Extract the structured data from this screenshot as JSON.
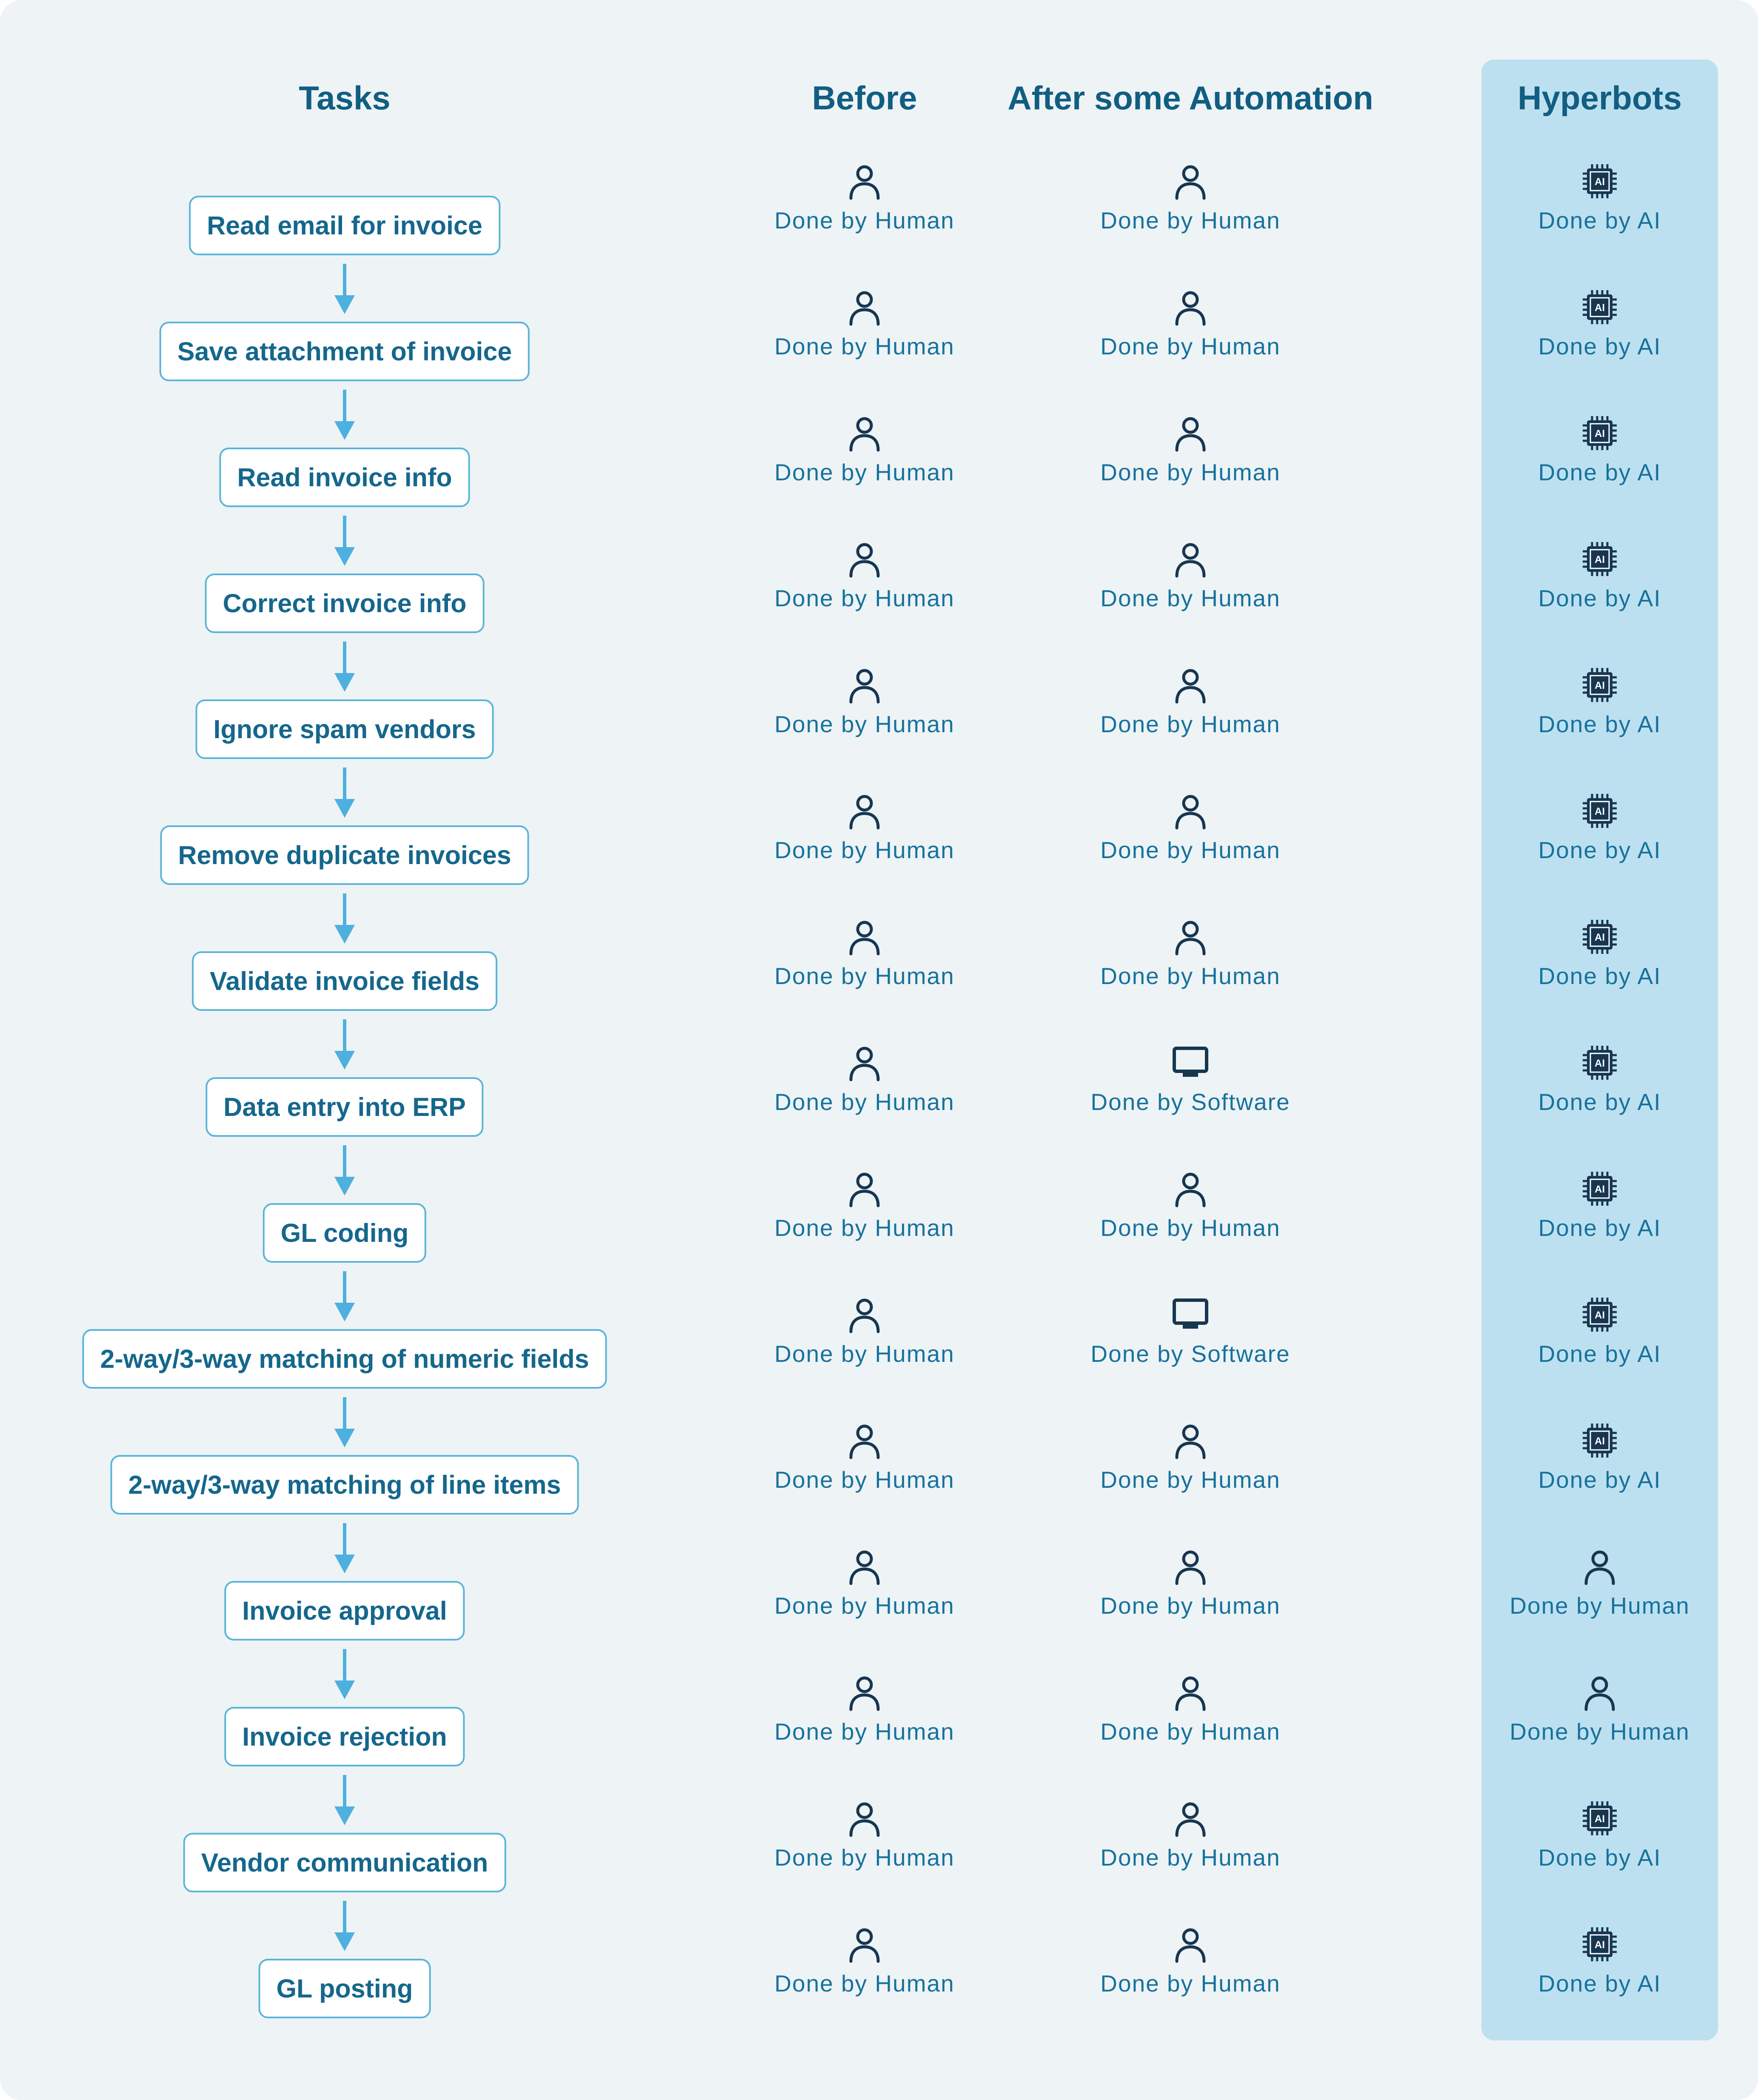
{
  "headers": {
    "tasks": "Tasks",
    "before": "Before",
    "after": "After some Automation",
    "hyperbots": "Hyperbots"
  },
  "icon_glyphs": {
    "ai": "AI"
  },
  "icons": {
    "human": "person-icon",
    "software": "monitor-icon",
    "ai": "ai-chip-icon"
  },
  "colors": {
    "background": "#eef3f6",
    "highlight_column": "#bde0f0",
    "heading_text": "#115e82",
    "task_border": "#5ab5d8",
    "arrow": "#4db0de",
    "icon": "#173650",
    "label_text": "#17729c"
  },
  "rows": [
    {
      "task": "Read email for invoice",
      "before": {
        "icon": "human",
        "label": "Done by Human"
      },
      "after": {
        "icon": "human",
        "label": "Done by Human"
      },
      "hyperbots": {
        "icon": "ai",
        "label": "Done by AI"
      }
    },
    {
      "task": "Save attachment of invoice",
      "before": {
        "icon": "human",
        "label": "Done by Human"
      },
      "after": {
        "icon": "human",
        "label": "Done by Human"
      },
      "hyperbots": {
        "icon": "ai",
        "label": "Done by AI"
      }
    },
    {
      "task": "Read invoice info",
      "before": {
        "icon": "human",
        "label": "Done by Human"
      },
      "after": {
        "icon": "human",
        "label": "Done by Human"
      },
      "hyperbots": {
        "icon": "ai",
        "label": "Done by AI"
      }
    },
    {
      "task": "Correct invoice info",
      "before": {
        "icon": "human",
        "label": "Done by Human"
      },
      "after": {
        "icon": "human",
        "label": "Done by Human"
      },
      "hyperbots": {
        "icon": "ai",
        "label": "Done by AI"
      }
    },
    {
      "task": "Ignore spam vendors",
      "before": {
        "icon": "human",
        "label": "Done by Human"
      },
      "after": {
        "icon": "human",
        "label": "Done by Human"
      },
      "hyperbots": {
        "icon": "ai",
        "label": "Done by AI"
      }
    },
    {
      "task": "Remove duplicate invoices",
      "before": {
        "icon": "human",
        "label": "Done by Human"
      },
      "after": {
        "icon": "human",
        "label": "Done by Human"
      },
      "hyperbots": {
        "icon": "ai",
        "label": "Done by AI"
      }
    },
    {
      "task": "Validate invoice fields",
      "before": {
        "icon": "human",
        "label": "Done by Human"
      },
      "after": {
        "icon": "human",
        "label": "Done by Human"
      },
      "hyperbots": {
        "icon": "ai",
        "label": "Done by AI"
      }
    },
    {
      "task": "Data entry into ERP",
      "before": {
        "icon": "human",
        "label": "Done by Human"
      },
      "after": {
        "icon": "software",
        "label": "Done by Software"
      },
      "hyperbots": {
        "icon": "ai",
        "label": "Done by AI"
      }
    },
    {
      "task": "GL coding",
      "before": {
        "icon": "human",
        "label": "Done by Human"
      },
      "after": {
        "icon": "human",
        "label": "Done by Human"
      },
      "hyperbots": {
        "icon": "ai",
        "label": "Done by AI"
      }
    },
    {
      "task": "2-way/3-way matching of numeric fields",
      "before": {
        "icon": "human",
        "label": "Done by Human"
      },
      "after": {
        "icon": "software",
        "label": "Done by Software"
      },
      "hyperbots": {
        "icon": "ai",
        "label": "Done by AI"
      }
    },
    {
      "task": "2-way/3-way matching of line items",
      "before": {
        "icon": "human",
        "label": "Done by Human"
      },
      "after": {
        "icon": "human",
        "label": "Done by Human"
      },
      "hyperbots": {
        "icon": "ai",
        "label": "Done by AI"
      }
    },
    {
      "task": "Invoice approval",
      "before": {
        "icon": "human",
        "label": "Done by Human"
      },
      "after": {
        "icon": "human",
        "label": "Done by Human"
      },
      "hyperbots": {
        "icon": "human",
        "label": "Done by Human"
      }
    },
    {
      "task": "Invoice rejection",
      "before": {
        "icon": "human",
        "label": "Done by Human"
      },
      "after": {
        "icon": "human",
        "label": "Done by Human"
      },
      "hyperbots": {
        "icon": "human",
        "label": "Done by Human"
      }
    },
    {
      "task": "Vendor communication",
      "before": {
        "icon": "human",
        "label": "Done by Human"
      },
      "after": {
        "icon": "human",
        "label": "Done by Human"
      },
      "hyperbots": {
        "icon": "ai",
        "label": "Done by AI"
      }
    },
    {
      "task": "GL posting",
      "before": {
        "icon": "human",
        "label": "Done by Human"
      },
      "after": {
        "icon": "human",
        "label": "Done by Human"
      },
      "hyperbots": {
        "icon": "ai",
        "label": "Done by AI"
      }
    }
  ]
}
